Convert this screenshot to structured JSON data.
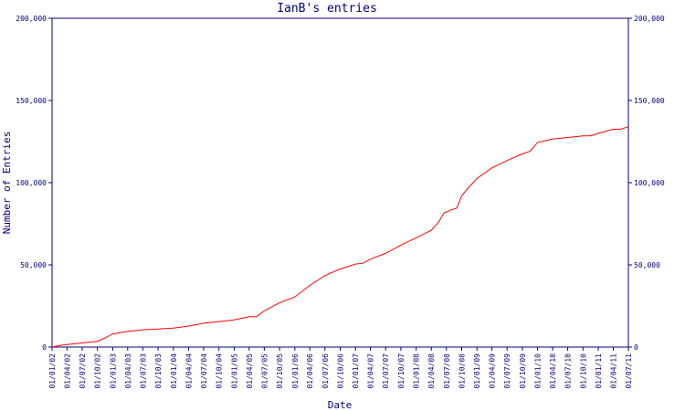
{
  "colors": {
    "axis": "#000080",
    "line": "#ff0000",
    "background": "#ffffff"
  },
  "chart_data": {
    "type": "line",
    "title": "IanB's entries",
    "xlabel": "Date",
    "ylabel": "Number of Entries",
    "ylim": [
      0,
      200000
    ],
    "xlim": [
      "2002-01-01",
      "2011-07-01"
    ],
    "grid": false,
    "legend": "none",
    "y_ticks": [
      {
        "value": 0,
        "label": "0"
      },
      {
        "value": 50000,
        "label": "50,000"
      },
      {
        "value": 100000,
        "label": "100,000"
      },
      {
        "value": 150000,
        "label": "150,000"
      },
      {
        "value": 200000,
        "label": "200,000"
      }
    ],
    "x_ticks": [
      {
        "date": "2002-01-01",
        "label": "01/01/02"
      },
      {
        "date": "2002-04-01",
        "label": "01/04/02"
      },
      {
        "date": "2002-07-01",
        "label": "01/07/02"
      },
      {
        "date": "2002-10-01",
        "label": "01/10/02"
      },
      {
        "date": "2003-01-01",
        "label": "01/01/03"
      },
      {
        "date": "2003-04-01",
        "label": "01/04/03"
      },
      {
        "date": "2003-07-01",
        "label": "01/07/03"
      },
      {
        "date": "2003-10-01",
        "label": "01/10/03"
      },
      {
        "date": "2004-01-01",
        "label": "01/01/04"
      },
      {
        "date": "2004-04-01",
        "label": "01/04/04"
      },
      {
        "date": "2004-07-01",
        "label": "01/07/04"
      },
      {
        "date": "2004-10-01",
        "label": "01/10/04"
      },
      {
        "date": "2005-01-01",
        "label": "01/01/05"
      },
      {
        "date": "2005-04-01",
        "label": "01/04/05"
      },
      {
        "date": "2005-07-01",
        "label": "01/07/05"
      },
      {
        "date": "2005-10-01",
        "label": "01/10/05"
      },
      {
        "date": "2006-01-01",
        "label": "01/01/06"
      },
      {
        "date": "2006-04-01",
        "label": "01/04/06"
      },
      {
        "date": "2006-07-01",
        "label": "01/07/06"
      },
      {
        "date": "2006-10-01",
        "label": "01/10/06"
      },
      {
        "date": "2007-01-01",
        "label": "01/01/07"
      },
      {
        "date": "2007-04-01",
        "label": "01/04/07"
      },
      {
        "date": "2007-07-01",
        "label": "01/07/07"
      },
      {
        "date": "2007-10-01",
        "label": "01/10/07"
      },
      {
        "date": "2008-01-01",
        "label": "01/01/08"
      },
      {
        "date": "2008-04-01",
        "label": "01/04/08"
      },
      {
        "date": "2008-07-01",
        "label": "01/07/08"
      },
      {
        "date": "2008-10-01",
        "label": "01/10/08"
      },
      {
        "date": "2009-01-01",
        "label": "01/01/09"
      },
      {
        "date": "2009-04-01",
        "label": "01/04/09"
      },
      {
        "date": "2009-07-01",
        "label": "01/07/09"
      },
      {
        "date": "2009-10-01",
        "label": "01/10/09"
      },
      {
        "date": "2010-01-01",
        "label": "01/01/10"
      },
      {
        "date": "2010-04-01",
        "label": "01/04/10"
      },
      {
        "date": "2010-07-01",
        "label": "01/07/10"
      },
      {
        "date": "2010-10-01",
        "label": "01/10/10"
      },
      {
        "date": "2011-01-01",
        "label": "01/01/11"
      },
      {
        "date": "2011-04-01",
        "label": "01/04/11"
      },
      {
        "date": "2011-07-01",
        "label": "01/07/11"
      }
    ],
    "series": [
      {
        "x": [
          "2002-01-01",
          "2002-02-15",
          "2002-04-01",
          "2002-07-01",
          "2002-10-01",
          "2002-11-15",
          "2003-01-01",
          "2003-04-01",
          "2003-07-01",
          "2003-10-01",
          "2004-01-01",
          "2004-04-01",
          "2004-07-01",
          "2004-10-01",
          "2005-01-01",
          "2005-04-01",
          "2005-05-15",
          "2005-07-01",
          "2005-10-01",
          "2006-01-01",
          "2006-04-01",
          "2006-07-01",
          "2006-10-01",
          "2007-01-01",
          "2007-02-15",
          "2007-04-01",
          "2007-07-01",
          "2007-10-01",
          "2008-01-01",
          "2008-04-01",
          "2008-05-15",
          "2008-06-15",
          "2008-08-01",
          "2008-09-01",
          "2008-10-01",
          "2008-11-15",
          "2009-01-01",
          "2009-04-01",
          "2009-07-01",
          "2009-10-01",
          "2009-11-15",
          "2010-01-01",
          "2010-02-15",
          "2010-04-01",
          "2010-07-01",
          "2010-10-01",
          "2010-11-15",
          "2011-01-01",
          "2011-04-01",
          "2011-05-15",
          "2011-06-15",
          "2011-07-01"
        ],
        "y": [
          0,
          1000,
          1500,
          2500,
          3500,
          5500,
          8000,
          9500,
          10500,
          11000,
          11500,
          12800,
          14500,
          15500,
          16500,
          18500,
          18500,
          22000,
          27000,
          30500,
          37500,
          43500,
          47500,
          50500,
          51000,
          53500,
          57000,
          62000,
          66500,
          71000,
          76000,
          81500,
          83500,
          84500,
          92000,
          97500,
          102500,
          109000,
          113500,
          117500,
          119000,
          124500,
          125500,
          126500,
          127500,
          128500,
          128500,
          130000,
          132500,
          132500,
          133500,
          134000
        ]
      }
    ]
  }
}
